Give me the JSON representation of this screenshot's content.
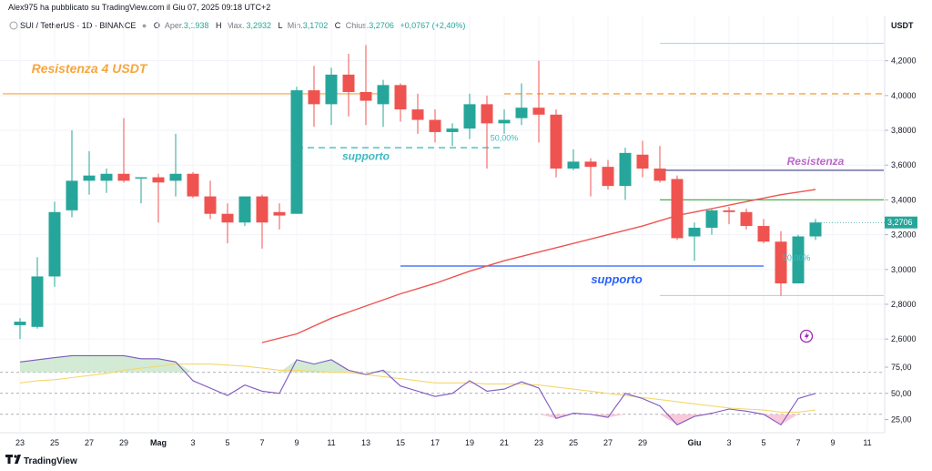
{
  "header": {
    "published": "Alex975 ha pubblicato su TradingView.com il Giu 07, 2025 09:18 UTC+2",
    "symbol": "SUI / TetherUS · 1D · BINANCE",
    "o_label": "O",
    "o_text": "Aper.",
    "o_value": "3,1938",
    "h_label": "H",
    "h_text": "Max.",
    "h_value": "3,2932",
    "l_label": "L",
    "l_text": "Min.",
    "l_value": "3,1702",
    "c_label": "C",
    "c_text": "Chius.",
    "c_value": "3,2706",
    "change": "+0,0767 (+2,40%)"
  },
  "axis": {
    "currency": "USDT",
    "last_price_label": "3,2706"
  },
  "footer": {
    "brand": "TradingView"
  },
  "colors": {
    "up": "#26a69a",
    "down": "#ef5350",
    "orange": "#f7a53c",
    "ma": "#ef5350",
    "rsi": "#7e57c2",
    "rsi_ma": "#f5d76e",
    "blue": "#2962ff"
  },
  "chart_data": {
    "type": "candlestick",
    "title": "SUI / TetherUS · 1D · BINANCE",
    "ylim": [
      2.58,
      4.35
    ],
    "y_ticks": [
      "4,2000",
      "4,0000",
      "3,8000",
      "3,6000",
      "3,4000",
      "3,2000",
      "3,0000",
      "2,8000",
      "2,6000"
    ],
    "y_tick_values": [
      4.2,
      4.0,
      3.8,
      3.6,
      3.4,
      3.2,
      3.0,
      2.8,
      2.6
    ],
    "x_ticks": [
      {
        "label": "23",
        "i": 0
      },
      {
        "label": "25",
        "i": 2
      },
      {
        "label": "27",
        "i": 4
      },
      {
        "label": "29",
        "i": 6
      },
      {
        "label": "Mag",
        "i": 8
      },
      {
        "label": "3",
        "i": 10
      },
      {
        "label": "5",
        "i": 12
      },
      {
        "label": "7",
        "i": 14
      },
      {
        "label": "9",
        "i": 16
      },
      {
        "label": "11",
        "i": 18
      },
      {
        "label": "13",
        "i": 20
      },
      {
        "label": "15",
        "i": 22
      },
      {
        "label": "17",
        "i": 24
      },
      {
        "label": "19",
        "i": 26
      },
      {
        "label": "21",
        "i": 28
      },
      {
        "label": "23",
        "i": 30
      },
      {
        "label": "25",
        "i": 32
      },
      {
        "label": "27",
        "i": 34
      },
      {
        "label": "29",
        "i": 36
      },
      {
        "label": "Giu",
        "i": 39
      },
      {
        "label": "3",
        "i": 41
      },
      {
        "label": "5",
        "i": 43
      },
      {
        "label": "7",
        "i": 45
      },
      {
        "label": "9",
        "i": 47
      },
      {
        "label": "11",
        "i": 49
      }
    ],
    "candles": [
      {
        "o": 2.68,
        "h": 2.72,
        "l": 2.6,
        "c": 2.7
      },
      {
        "o": 2.67,
        "h": 3.07,
        "l": 2.66,
        "c": 2.96
      },
      {
        "o": 2.96,
        "h": 3.39,
        "l": 2.9,
        "c": 3.33
      },
      {
        "o": 3.34,
        "h": 3.8,
        "l": 3.3,
        "c": 3.51
      },
      {
        "o": 3.51,
        "h": 3.68,
        "l": 3.43,
        "c": 3.54
      },
      {
        "o": 3.51,
        "h": 3.58,
        "l": 3.44,
        "c": 3.55
      },
      {
        "o": 3.55,
        "h": 3.87,
        "l": 3.5,
        "c": 3.51
      },
      {
        "o": 3.53,
        "h": 3.53,
        "l": 3.38,
        "c": 3.53
      },
      {
        "o": 3.53,
        "h": 3.55,
        "l": 3.27,
        "c": 3.5
      },
      {
        "o": 3.51,
        "h": 3.78,
        "l": 3.42,
        "c": 3.55
      },
      {
        "o": 3.55,
        "h": 3.56,
        "l": 3.41,
        "c": 3.42
      },
      {
        "o": 3.42,
        "h": 3.51,
        "l": 3.29,
        "c": 3.32
      },
      {
        "o": 3.32,
        "h": 3.38,
        "l": 3.15,
        "c": 3.27
      },
      {
        "o": 3.27,
        "h": 3.42,
        "l": 3.25,
        "c": 3.42
      },
      {
        "o": 3.42,
        "h": 3.43,
        "l": 3.12,
        "c": 3.27
      },
      {
        "o": 3.33,
        "h": 3.38,
        "l": 3.23,
        "c": 3.31
      },
      {
        "o": 3.32,
        "h": 4.05,
        "l": 3.32,
        "c": 4.03
      },
      {
        "o": 4.03,
        "h": 4.17,
        "l": 3.82,
        "c": 3.95
      },
      {
        "o": 3.95,
        "h": 4.16,
        "l": 3.83,
        "c": 4.12
      },
      {
        "o": 4.12,
        "h": 4.24,
        "l": 3.88,
        "c": 4.02
      },
      {
        "o": 4.02,
        "h": 4.29,
        "l": 3.83,
        "c": 3.97
      },
      {
        "o": 3.95,
        "h": 4.09,
        "l": 3.82,
        "c": 4.06
      },
      {
        "o": 4.06,
        "h": 4.07,
        "l": 3.85,
        "c": 3.92
      },
      {
        "o": 3.92,
        "h": 4.01,
        "l": 3.78,
        "c": 3.86
      },
      {
        "o": 3.86,
        "h": 3.92,
        "l": 3.73,
        "c": 3.79
      },
      {
        "o": 3.79,
        "h": 3.84,
        "l": 3.71,
        "c": 3.81
      },
      {
        "o": 3.81,
        "h": 4.01,
        "l": 3.75,
        "c": 3.95
      },
      {
        "o": 3.95,
        "h": 4.0,
        "l": 3.58,
        "c": 3.84
      },
      {
        "o": 3.84,
        "h": 3.92,
        "l": 3.78,
        "c": 3.86
      },
      {
        "o": 3.87,
        "h": 4.07,
        "l": 3.83,
        "c": 3.93
      },
      {
        "o": 3.93,
        "h": 4.2,
        "l": 3.73,
        "c": 3.89
      },
      {
        "o": 3.89,
        "h": 3.92,
        "l": 3.53,
        "c": 3.58
      },
      {
        "o": 3.58,
        "h": 3.69,
        "l": 3.57,
        "c": 3.62
      },
      {
        "o": 3.62,
        "h": 3.64,
        "l": 3.42,
        "c": 3.59
      },
      {
        "o": 3.59,
        "h": 3.63,
        "l": 3.46,
        "c": 3.48
      },
      {
        "o": 3.48,
        "h": 3.7,
        "l": 3.4,
        "c": 3.67
      },
      {
        "o": 3.66,
        "h": 3.74,
        "l": 3.53,
        "c": 3.58
      },
      {
        "o": 3.58,
        "h": 3.71,
        "l": 3.5,
        "c": 3.51
      },
      {
        "o": 3.52,
        "h": 3.54,
        "l": 3.17,
        "c": 3.18
      },
      {
        "o": 3.19,
        "h": 3.27,
        "l": 3.05,
        "c": 3.24
      },
      {
        "o": 3.24,
        "h": 3.35,
        "l": 3.2,
        "c": 3.34
      },
      {
        "o": 3.34,
        "h": 3.36,
        "l": 3.26,
        "c": 3.33
      },
      {
        "o": 3.33,
        "h": 3.35,
        "l": 3.23,
        "c": 3.25
      },
      {
        "o": 3.25,
        "h": 3.29,
        "l": 3.15,
        "c": 3.16
      },
      {
        "o": 3.16,
        "h": 3.22,
        "l": 2.85,
        "c": 2.92
      },
      {
        "o": 2.92,
        "h": 3.2,
        "l": 2.92,
        "c": 3.19
      },
      {
        "o": 3.19,
        "h": 3.29,
        "l": 3.17,
        "c": 3.27
      }
    ],
    "moving_average": [
      {
        "i": 14,
        "v": 2.58
      },
      {
        "i": 16,
        "v": 2.63
      },
      {
        "i": 18,
        "v": 2.72
      },
      {
        "i": 20,
        "v": 2.79
      },
      {
        "i": 22,
        "v": 2.86
      },
      {
        "i": 24,
        "v": 2.92
      },
      {
        "i": 26,
        "v": 2.99
      },
      {
        "i": 28,
        "v": 3.05
      },
      {
        "i": 30,
        "v": 3.1
      },
      {
        "i": 32,
        "v": 3.15
      },
      {
        "i": 34,
        "v": 3.2
      },
      {
        "i": 36,
        "v": 3.25
      },
      {
        "i": 38,
        "v": 3.31
      },
      {
        "i": 40,
        "v": 3.35
      },
      {
        "i": 42,
        "v": 3.39
      },
      {
        "i": 44,
        "v": 3.43
      },
      {
        "i": 46,
        "v": 3.46
      }
    ],
    "levels": [
      {
        "name": "resistenza-4-usdt-line",
        "value": 4.01,
        "from_i": -1,
        "to_i": 21,
        "style": "solid",
        "color": "#f7a53c"
      },
      {
        "name": "orange-dashed-line",
        "value": 4.01,
        "from_i": 28,
        "to_i": 50,
        "style": "dashed",
        "color": "#f7a53c"
      },
      {
        "name": "cyan-dashed-supporto",
        "value": 3.7,
        "from_i": 16,
        "to_i": 28,
        "style": "dashed",
        "color": "#4fc3c7"
      },
      {
        "name": "top-thin-line",
        "value": 4.3,
        "from_i": 37,
        "to_i": 50,
        "style": "solid",
        "color": "#a8dce2"
      },
      {
        "name": "resistenza-purple-line",
        "value": 3.57,
        "from_i": 37,
        "to_i": 50,
        "style": "solid",
        "color": "#3f3d8f"
      },
      {
        "name": "green-line",
        "value": 3.4,
        "from_i": 37,
        "to_i": 50,
        "style": "solid",
        "color": "#4caf50"
      },
      {
        "name": "supporto-blue-line",
        "value": 3.02,
        "from_i": 22,
        "to_i": 43,
        "style": "solid",
        "color": "#2962ff"
      },
      {
        "name": "bottom-thin-line",
        "value": 2.85,
        "from_i": 37,
        "to_i": 50,
        "style": "solid",
        "color": "#a8dce2"
      }
    ],
    "annotations": [
      {
        "name": "resistenza-4-usdt-label",
        "text": "Resistenza 4 USDT",
        "i": 4.0,
        "y": 4.13,
        "color": "#f7a53c",
        "size": 14
      },
      {
        "name": "supporto-top-label",
        "text": "supporto",
        "i": 20.0,
        "y": 3.63,
        "color": "#3fbac2",
        "size": 12
      },
      {
        "name": "fib-50-top-label",
        "text": "50,00%",
        "i": 28.0,
        "y": 3.74,
        "color": "#3fbac2",
        "size": 8
      },
      {
        "name": "resistenza-label",
        "text": "Resistenza",
        "i": 46.0,
        "y": 3.6,
        "color": "#ba68c8",
        "size": 12
      },
      {
        "name": "supporto-bottom-label",
        "text": "supporto",
        "i": 34.5,
        "y": 2.92,
        "color": "#2962ff",
        "size": 13
      },
      {
        "name": "fib-50-bottom-label",
        "text": "50,00%",
        "i": 44.9,
        "y": 3.05,
        "color": "#3fbac2",
        "size": 8
      }
    ],
    "rsi": {
      "ylim": [
        15,
        95
      ],
      "y_ticks": [
        "75,00",
        "50,00",
        "25,00"
      ],
      "y_tick_values": [
        75,
        50,
        25
      ],
      "levels": [
        70,
        50,
        30
      ],
      "values": [
        80,
        82,
        84,
        86,
        86,
        86,
        86,
        83,
        83,
        80,
        62,
        55,
        48,
        58,
        52,
        50,
        82,
        78,
        82,
        72,
        68,
        72,
        57,
        52,
        47,
        50,
        62,
        52,
        54,
        61,
        55,
        26,
        31,
        30,
        27,
        50,
        45,
        38,
        20,
        28,
        31,
        35,
        33,
        30,
        20,
        45,
        50
      ],
      "ma": [
        60,
        62,
        63,
        65,
        67,
        69,
        72,
        74,
        76,
        78,
        78,
        78,
        77,
        76,
        74,
        72,
        72,
        71,
        70,
        70,
        68,
        66,
        64,
        62,
        60,
        60,
        60,
        59,
        59,
        59,
        58,
        56,
        54,
        52,
        50,
        48,
        46,
        44,
        42,
        40,
        38,
        36,
        35,
        34,
        32,
        32,
        34
      ]
    }
  }
}
